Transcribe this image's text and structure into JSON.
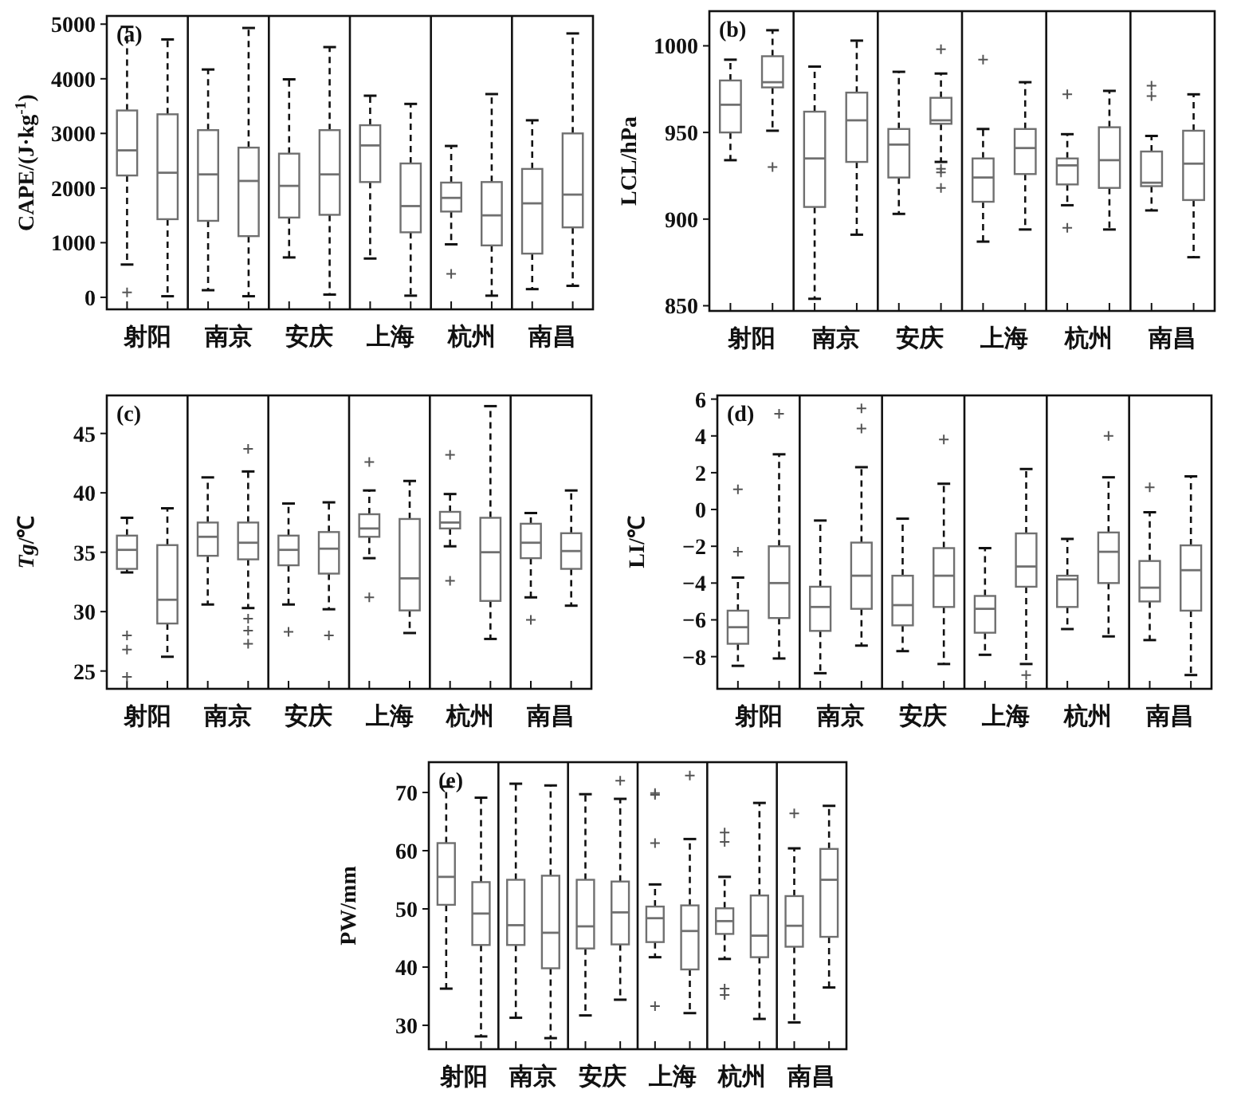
{
  "chart_data": [
    {
      "type": "box",
      "title": "(a)",
      "ylabel": "CAPE/(J·kg$^{-1}$)",
      "categories": [
        "射阳",
        "南京",
        "安庆",
        "上海",
        "杭州",
        "南昌"
      ],
      "ylim": [
        -220,
        5150
      ],
      "yticks": [
        0,
        1000,
        2000,
        3000,
        4000,
        5000
      ],
      "series": [
        {
          "color": "#707070",
          "boxes": [
            {
              "low": 600,
              "q1": 2230,
              "median": 2690,
              "q3": 3420,
              "high": 4950,
              "outliers": [
                90
              ]
            },
            {
              "low": 130,
              "q1": 1400,
              "median": 2250,
              "q3": 3060,
              "high": 4170
            },
            {
              "low": 730,
              "q1": 1460,
              "median": 2040,
              "q3": 2630,
              "high": 3990
            },
            {
              "low": 710,
              "q1": 2110,
              "median": 2780,
              "q3": 3150,
              "high": 3690
            },
            {
              "low": 970,
              "q1": 1570,
              "median": 1820,
              "q3": 2100,
              "high": 2770,
              "outliers": [
                430
              ]
            },
            {
              "low": 150,
              "q1": 800,
              "median": 1720,
              "q3": 2350,
              "high": 3240
            }
          ]
        },
        {
          "color": "#707070",
          "boxes": [
            {
              "low": 20,
              "q1": 1430,
              "median": 2280,
              "q3": 3350,
              "high": 4720
            },
            {
              "low": 20,
              "q1": 1120,
              "median": 2130,
              "q3": 2740,
              "high": 4930
            },
            {
              "low": 50,
              "q1": 1510,
              "median": 2250,
              "q3": 3060,
              "high": 4580
            },
            {
              "low": 30,
              "q1": 1190,
              "median": 1670,
              "q3": 2450,
              "high": 3540
            },
            {
              "low": 30,
              "q1": 950,
              "median": 1500,
              "q3": 2110,
              "high": 3720
            },
            {
              "low": 210,
              "q1": 1280,
              "median": 1880,
              "q3": 3000,
              "high": 4830
            }
          ]
        }
      ]
    },
    {
      "type": "box",
      "title": "(b)",
      "ylabel": "LCL/hPa",
      "categories": [
        "射阳",
        "南京",
        "安庆",
        "上海",
        "杭州",
        "南昌"
      ],
      "ylim": [
        847,
        1020
      ],
      "yticks": [
        850,
        900,
        950,
        1000
      ],
      "series": [
        {
          "color": "#707070",
          "boxes": [
            {
              "low": 934,
              "q1": 950,
              "median": 966,
              "q3": 980,
              "high": 992
            },
            {
              "low": 854,
              "q1": 907,
              "median": 935,
              "q3": 962,
              "high": 988
            },
            {
              "low": 903,
              "q1": 924,
              "median": 943,
              "q3": 952,
              "high": 985
            },
            {
              "low": 887,
              "q1": 910,
              "median": 924,
              "q3": 935,
              "high": 952,
              "outliers": [
                992
              ]
            },
            {
              "low": 908,
              "q1": 920,
              "median": 931,
              "q3": 935,
              "high": 949,
              "outliers": [
                972,
                895
              ]
            },
            {
              "low": 905,
              "q1": 919,
              "median": 921,
              "q3": 939,
              "high": 948,
              "outliers": [
                977,
                971
              ]
            }
          ]
        },
        {
          "color": "#707070",
          "boxes": [
            {
              "low": 951,
              "q1": 976,
              "median": 979,
              "q3": 994,
              "high": 1009,
              "outliers": [
                930
              ]
            },
            {
              "low": 891,
              "q1": 933,
              "median": 957,
              "q3": 973,
              "high": 1003
            },
            {
              "low": 933,
              "q1": 955,
              "median": 957,
              "q3": 970,
              "high": 984,
              "outliers": [
                998,
                929,
                927,
                918
              ]
            },
            {
              "low": 894,
              "q1": 926,
              "median": 941,
              "q3": 952,
              "high": 979
            },
            {
              "low": 894,
              "q1": 918,
              "median": 934,
              "q3": 953,
              "high": 974
            },
            {
              "low": 878,
              "q1": 911,
              "median": 932,
              "q3": 951,
              "high": 972
            }
          ]
        }
      ]
    },
    {
      "type": "box",
      "title": "(c)",
      "ylabel": "*Tg*/℃",
      "categories": [
        "射阳",
        "南京",
        "安庆",
        "上海",
        "杭州",
        "南昌"
      ],
      "ylim": [
        23.5,
        48.2
      ],
      "yticks": [
        25,
        30,
        35,
        40,
        45
      ],
      "series": [
        {
          "color": "#707070",
          "boxes": [
            {
              "low": 33.3,
              "q1": 33.6,
              "median": 35.2,
              "q3": 36.4,
              "high": 37.9,
              "outliers": [
                28.0,
                26.8,
                24.5
              ]
            },
            {
              "low": 30.6,
              "q1": 34.7,
              "median": 36.3,
              "q3": 37.5,
              "high": 41.3
            },
            {
              "low": 30.6,
              "q1": 33.9,
              "median": 35.2,
              "q3": 36.4,
              "high": 39.1,
              "outliers": [
                28.3
              ]
            },
            {
              "low": 34.5,
              "q1": 36.3,
              "median": 37.0,
              "q3": 38.2,
              "high": 40.2,
              "outliers": [
                42.6,
                31.2
              ]
            },
            {
              "low": 35.5,
              "q1": 37.0,
              "median": 37.5,
              "q3": 38.4,
              "high": 39.9,
              "outliers": [
                43.2,
                32.6
              ]
            },
            {
              "low": 31.2,
              "q1": 34.5,
              "median": 35.8,
              "q3": 37.4,
              "high": 38.3,
              "outliers": [
                29.3
              ]
            }
          ]
        },
        {
          "color": "#707070",
          "boxes": [
            {
              "low": 26.2,
              "q1": 29.0,
              "median": 31.0,
              "q3": 35.6,
              "high": 38.7
            },
            {
              "low": 30.3,
              "q1": 34.4,
              "median": 35.8,
              "q3": 37.5,
              "high": 41.8,
              "outliers": [
                43.7,
                29.4,
                28.4,
                27.3
              ]
            },
            {
              "low": 30.2,
              "q1": 33.2,
              "median": 35.3,
              "q3": 36.7,
              "high": 39.2,
              "outliers": [
                28.0
              ]
            },
            {
              "low": 28.2,
              "q1": 30.1,
              "median": 32.8,
              "q3": 37.8,
              "high": 41.0
            },
            {
              "low": 27.7,
              "q1": 30.9,
              "median": 35.0,
              "q3": 37.9,
              "high": 47.3
            },
            {
              "low": 30.5,
              "q1": 33.6,
              "median": 35.1,
              "q3": 36.6,
              "high": 40.2
            }
          ]
        }
      ]
    },
    {
      "type": "box",
      "title": "(d)",
      "ylabel": "LI/℃",
      "categories": [
        "射阳",
        "南京",
        "安庆",
        "上海",
        "杭州",
        "南昌"
      ],
      "ylim": [
        -9.75,
        6.2
      ],
      "yticks": [
        -8,
        -6,
        -4,
        -2,
        0,
        2,
        4,
        6
      ],
      "series": [
        {
          "color": "#707070",
          "boxes": [
            {
              "low": -8.5,
              "q1": -7.3,
              "median": -6.4,
              "q3": -5.5,
              "high": -3.7,
              "outliers": [
                1.1,
                -2.3
              ]
            },
            {
              "low": -8.9,
              "q1": -6.6,
              "median": -5.3,
              "q3": -4.2,
              "high": -0.6
            },
            {
              "low": -7.7,
              "q1": -6.3,
              "median": -5.2,
              "q3": -3.6,
              "high": -0.5
            },
            {
              "low": -7.9,
              "q1": -6.7,
              "median": -5.4,
              "q3": -4.7,
              "high": -2.1
            },
            {
              "low": -6.5,
              "q1": -5.3,
              "median": -3.8,
              "q3": -3.6,
              "high": -1.6
            },
            {
              "low": -7.1,
              "q1": -5.0,
              "median": -4.25,
              "q3": -2.8,
              "high": -0.15,
              "outliers": [
                1.2
              ]
            }
          ]
        },
        {
          "color": "#707070",
          "boxes": [
            {
              "low": -8.1,
              "q1": -5.9,
              "median": -4.0,
              "q3": -2.0,
              "high": 3.0,
              "outliers": [
                5.2
              ]
            },
            {
              "low": -7.4,
              "q1": -5.4,
              "median": -3.6,
              "q3": -1.8,
              "high": 2.3,
              "outliers": [
                5.5,
                4.4
              ]
            },
            {
              "low": -8.4,
              "q1": -5.3,
              "median": -3.6,
              "q3": -2.1,
              "high": 1.4,
              "outliers": [
                3.8
              ]
            },
            {
              "low": -8.4,
              "q1": -4.2,
              "median": -3.1,
              "q3": -1.3,
              "high": 2.2,
              "outliers": [
                -9.0
              ]
            },
            {
              "low": -6.9,
              "q1": -4.0,
              "median": -2.3,
              "q3": -1.25,
              "high": 1.75,
              "outliers": [
                4.0
              ]
            },
            {
              "low": -9.0,
              "q1": -5.5,
              "median": -3.3,
              "q3": -1.95,
              "high": 1.8
            }
          ]
        }
      ]
    },
    {
      "type": "box",
      "title": "(e)",
      "ylabel": "PW/mm",
      "categories": [
        "射阳",
        "南京",
        "安庆",
        "上海",
        "杭州",
        "南昌"
      ],
      "ylim": [
        25.9,
        75.2
      ],
      "yticks": [
        30,
        40,
        50,
        60,
        70
      ],
      "series": [
        {
          "color": "#707070",
          "boxes": [
            {
              "low": 36.3,
              "q1": 50.7,
              "median": 55.5,
              "q3": 61.3,
              "high": 71.0
            },
            {
              "low": 31.3,
              "q1": 43.8,
              "median": 47.2,
              "q3": 55.0,
              "high": 71.5
            },
            {
              "low": 31.7,
              "q1": 43.2,
              "median": 47.0,
              "q3": 55.0,
              "high": 69.7
            },
            {
              "low": 41.7,
              "q1": 44.3,
              "median": 48.4,
              "q3": 50.4,
              "high": 54.2,
              "outliers": [
                69.9,
                69.6,
                61.3,
                33.3
              ]
            },
            {
              "low": 41.4,
              "q1": 45.7,
              "median": 47.9,
              "q3": 50.1,
              "high": 55.5,
              "outliers": [
                63.1,
                61.5,
                36.3,
                35.2
              ]
            },
            {
              "low": 30.5,
              "q1": 43.5,
              "median": 47.1,
              "q3": 52.2,
              "high": 60.4,
              "outliers": [
                66.4
              ]
            }
          ]
        },
        {
          "color": "#707070",
          "boxes": [
            {
              "low": 28.1,
              "q1": 43.8,
              "median": 49.2,
              "q3": 54.6,
              "high": 69.1
            },
            {
              "low": 27.8,
              "q1": 39.8,
              "median": 45.9,
              "q3": 55.7,
              "high": 71.2
            },
            {
              "low": 34.4,
              "q1": 43.9,
              "median": 49.4,
              "q3": 54.7,
              "high": 68.9,
              "outliers": [
                72.0
              ]
            },
            {
              "low": 32.1,
              "q1": 39.6,
              "median": 46.2,
              "q3": 50.6,
              "high": 62.0,
              "outliers": [
                72.9
              ]
            },
            {
              "low": 31.1,
              "q1": 41.7,
              "median": 45.4,
              "q3": 52.3,
              "high": 68.2
            },
            {
              "low": 36.5,
              "q1": 45.2,
              "median": 55.0,
              "q3": 60.3,
              "high": 67.7
            }
          ]
        }
      ]
    }
  ]
}
